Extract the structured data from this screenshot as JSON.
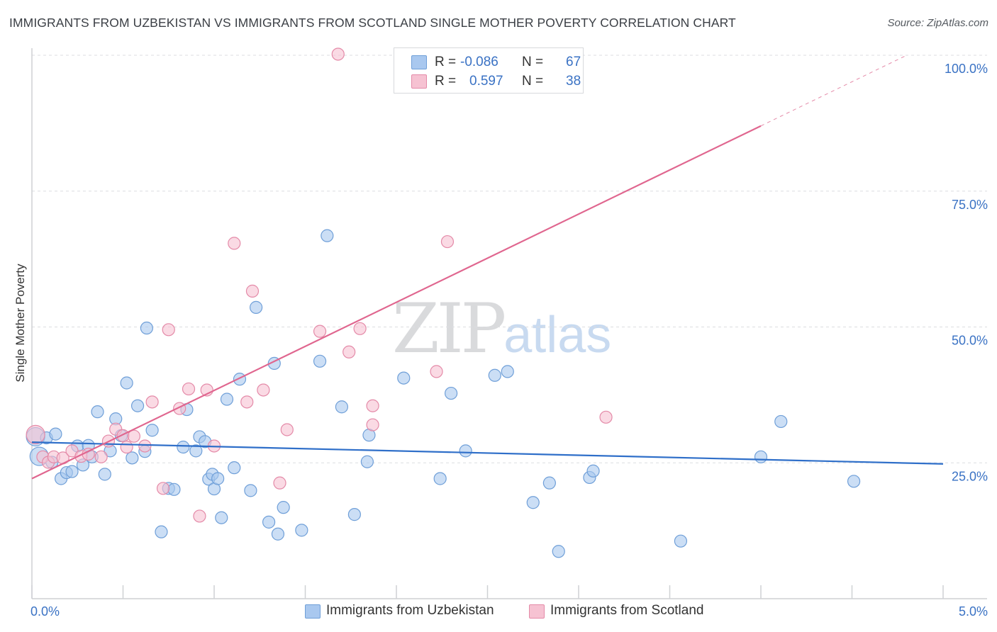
{
  "title": "IMMIGRANTS FROM UZBEKISTAN VS IMMIGRANTS FROM SCOTLAND SINGLE MOTHER POVERTY CORRELATION CHART",
  "source": "Source: ZipAtlas.com",
  "watermark": {
    "zip": "ZIP",
    "atlas": "atlas"
  },
  "legend": {
    "rows": [
      {
        "r_label": "R =",
        "r_value": "-0.086",
        "n_label": "N =",
        "n_value": "67",
        "color": "#a9c8ef"
      },
      {
        "r_label": "R =",
        "r_value": "0.597",
        "n_label": "N =",
        "n_value": "38",
        "color": "#f6b8cb"
      }
    ]
  },
  "colors": {
    "blue_fill": "#a9c8ef",
    "blue_stroke": "#6f9fd8",
    "blue_line": "#2f6fc9",
    "pink_fill": "#f6c2d2",
    "pink_stroke": "#e48aa8",
    "pink_line": "#e0668f",
    "grid": "#dcdde0",
    "tick_label": "#3a72c4"
  },
  "chart_data": {
    "type": "scatter",
    "title": "IMMIGRANTS FROM UZBEKISTAN VS IMMIGRANTS FROM SCOTLAND SINGLE MOTHER POVERTY CORRELATION CHART",
    "xlabel": "",
    "ylabel": "Single Mother Poverty",
    "xlim": [
      0,
      5
    ],
    "ylim": [
      0,
      103
    ],
    "x_tick_labels": [
      "0.0%",
      "5.0%"
    ],
    "y_ticks": [
      25,
      50,
      75,
      100
    ],
    "y_tick_labels": [
      "25.0%",
      "50.0%",
      "75.0%",
      "100.0%"
    ],
    "grid": true,
    "series": [
      {
        "name": "Immigrants from Uzbekistan",
        "color": "#a9c8ef",
        "trend": {
          "x0": 0,
          "y0": 28.8,
          "x1": 5,
          "y1": 24.8
        },
        "points": [
          [
            0.02,
            29.8
          ],
          [
            0.04,
            26.2
          ],
          [
            0.08,
            29.6
          ],
          [
            0.11,
            25.1
          ],
          [
            0.13,
            30.3
          ],
          [
            0.16,
            22.1
          ],
          [
            0.19,
            23.2
          ],
          [
            0.22,
            23.4
          ],
          [
            0.25,
            28.1
          ],
          [
            0.28,
            24.6
          ],
          [
            0.31,
            28.2
          ],
          [
            0.33,
            26.1
          ],
          [
            0.36,
            34.4
          ],
          [
            0.4,
            22.9
          ],
          [
            0.43,
            27.2
          ],
          [
            0.46,
            33.1
          ],
          [
            0.49,
            30.0
          ],
          [
            0.52,
            39.7
          ],
          [
            0.55,
            25.9
          ],
          [
            0.58,
            35.5
          ],
          [
            0.62,
            27.1
          ],
          [
            0.66,
            31.0
          ],
          [
            0.63,
            49.8
          ],
          [
            0.71,
            12.3
          ],
          [
            0.75,
            20.3
          ],
          [
            0.78,
            20.1
          ],
          [
            0.83,
            27.9
          ],
          [
            0.85,
            34.8
          ],
          [
            0.9,
            27.2
          ],
          [
            0.92,
            29.8
          ],
          [
            0.95,
            28.9
          ],
          [
            0.97,
            22.0
          ],
          [
            0.99,
            22.9
          ],
          [
            1.0,
            20.2
          ],
          [
            1.02,
            22.1
          ],
          [
            1.04,
            14.9
          ],
          [
            1.07,
            36.7
          ],
          [
            1.11,
            24.1
          ],
          [
            1.14,
            40.4
          ],
          [
            1.2,
            19.9
          ],
          [
            1.23,
            53.6
          ],
          [
            1.3,
            14.1
          ],
          [
            1.33,
            43.3
          ],
          [
            1.35,
            11.9
          ],
          [
            1.38,
            16.8
          ],
          [
            1.48,
            12.6
          ],
          [
            1.58,
            43.7
          ],
          [
            1.62,
            66.8
          ],
          [
            1.7,
            35.3
          ],
          [
            1.77,
            15.5
          ],
          [
            1.84,
            25.2
          ],
          [
            1.85,
            30.1
          ],
          [
            2.04,
            40.6
          ],
          [
            2.24,
            22.1
          ],
          [
            2.3,
            37.8
          ],
          [
            2.38,
            27.2
          ],
          [
            2.54,
            41.1
          ],
          [
            2.61,
            41.8
          ],
          [
            2.75,
            17.7
          ],
          [
            2.84,
            21.3
          ],
          [
            2.89,
            8.7
          ],
          [
            3.06,
            22.3
          ],
          [
            3.08,
            23.5
          ],
          [
            3.56,
            10.6
          ],
          [
            4.0,
            26.1
          ],
          [
            4.11,
            32.6
          ],
          [
            4.51,
            21.6
          ]
        ]
      },
      {
        "name": "Immigrants from Scotland",
        "color": "#f6b8cb",
        "trend": {
          "x0": 0,
          "y0": 22.1,
          "x1": 4.0,
          "y1": 87.0
        },
        "trend_dashed": {
          "x0": 4.0,
          "y0": 87.0,
          "x1": 4.8,
          "y1": 100.0
        },
        "points": [
          [
            0.02,
            30.2
          ],
          [
            0.06,
            26.1
          ],
          [
            0.09,
            25.1
          ],
          [
            0.12,
            26.1
          ],
          [
            0.17,
            25.9
          ],
          [
            0.22,
            27.2
          ],
          [
            0.27,
            26.2
          ],
          [
            0.31,
            26.6
          ],
          [
            0.38,
            26.1
          ],
          [
            0.42,
            29.0
          ],
          [
            0.46,
            31.2
          ],
          [
            0.5,
            30.0
          ],
          [
            0.52,
            27.9
          ],
          [
            0.56,
            29.9
          ],
          [
            0.62,
            28.1
          ],
          [
            0.66,
            36.2
          ],
          [
            0.72,
            20.3
          ],
          [
            0.75,
            49.5
          ],
          [
            0.81,
            35.0
          ],
          [
            0.86,
            38.6
          ],
          [
            0.92,
            15.2
          ],
          [
            0.96,
            38.4
          ],
          [
            1.0,
            28.1
          ],
          [
            1.11,
            65.4
          ],
          [
            1.18,
            36.2
          ],
          [
            1.21,
            56.6
          ],
          [
            1.27,
            38.4
          ],
          [
            1.36,
            21.3
          ],
          [
            1.4,
            31.1
          ],
          [
            1.58,
            49.2
          ],
          [
            1.68,
            100.2
          ],
          [
            1.74,
            45.4
          ],
          [
            1.8,
            49.7
          ],
          [
            1.87,
            35.5
          ],
          [
            1.87,
            32.0
          ],
          [
            2.22,
            41.8
          ],
          [
            2.28,
            65.7
          ],
          [
            3.15,
            33.4
          ]
        ]
      }
    ]
  },
  "bottom_legend": [
    "Immigrants from Uzbekistan",
    "Immigrants from Scotland"
  ]
}
